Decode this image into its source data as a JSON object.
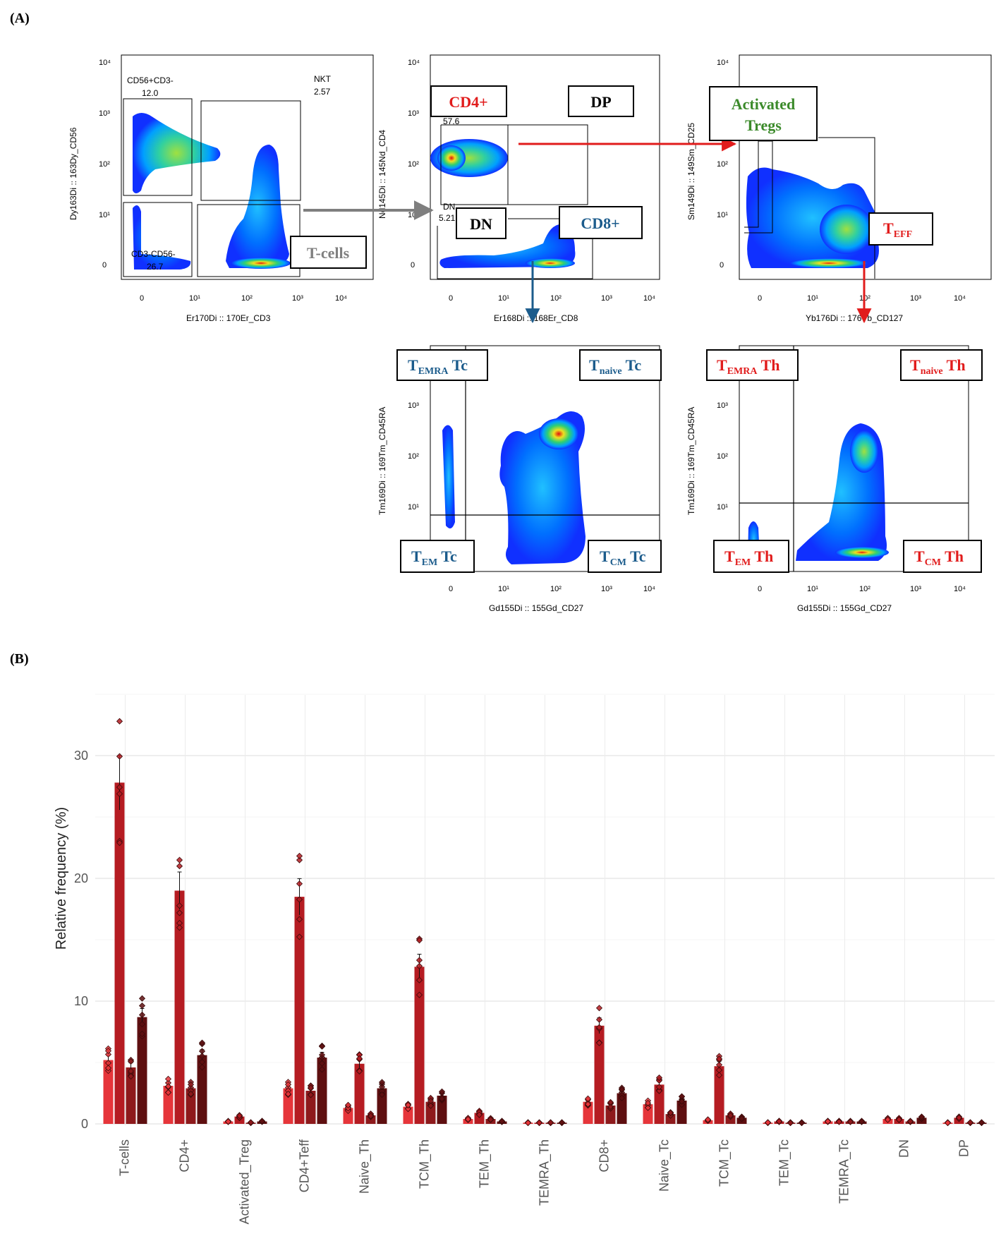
{
  "panel_a_label": "(A)",
  "panel_b_label": "(B)",
  "colors": {
    "red": "#e11c1c",
    "blue": "#1c5c8c",
    "green": "#3b8a2a",
    "gray": "#7f7f7f",
    "bar1": "#e6353a",
    "bar2": "#b51c22",
    "bar3": "#8e1a1c",
    "bar4": "#5e0f10"
  },
  "flow_panels": [
    {
      "id": "p1",
      "xlabel": "Er170Di :: 170Er_CD3",
      "ylabel": "Dy163Di :: 163Dy_CD56",
      "ticks": [
        "0",
        "10¹",
        "10²",
        "10³",
        "10⁴"
      ],
      "gates": [
        {
          "text": "CD56+CD3-"
        },
        {
          "text": "12.0"
        },
        {
          "text": "NKT"
        },
        {
          "text": "2.57"
        },
        {
          "text": "CD3-CD56-"
        },
        {
          "text": "26.7"
        }
      ]
    },
    {
      "id": "p2",
      "xlabel": "Er168Di :: 168Er_CD8",
      "ylabel": "Nd145Di :: 145Nd_CD4",
      "ticks": [
        "0",
        "10¹",
        "10²",
        "10³",
        "10⁴"
      ],
      "gates": [
        {
          "text": "57.6"
        },
        {
          "text": "DN"
        },
        {
          "text": "5.21"
        }
      ]
    },
    {
      "id": "p3",
      "xlabel": "Yb176Di :: 176Yb_CD127",
      "ylabel": "Sm149Di :: 149Sm_CD25",
      "ticks": [
        "0",
        "10¹",
        "10²",
        "10³",
        "10⁴"
      ],
      "gates": []
    },
    {
      "id": "p4",
      "xlabel": "Gd155Di :: 155Gd_CD27",
      "ylabel": "Tm169Di :: 169Tm_CD45RA",
      "ticks": [
        "0",
        "10¹",
        "10²",
        "10³",
        "10⁴"
      ],
      "gates": []
    },
    {
      "id": "p5",
      "xlabel": "Gd155Di :: 155Gd_CD27",
      "ylabel": "Tm169Di :: 169Tm_CD45RA",
      "ticks": [
        "0",
        "10¹",
        "10²",
        "10³",
        "10⁴"
      ],
      "gates": []
    }
  ],
  "boxes": {
    "tcells": "T-cells",
    "cd4": "CD4+",
    "dp": "DP",
    "dn": "DN",
    "cd8": "CD8+",
    "activated": "Activated",
    "tregs": "Tregs",
    "teff_main": "T",
    "teff_sub": "EFF",
    "temra_tc_main": "T",
    "temra_tc_sub": "EMRA",
    "temra_tc_suffix": " Tc",
    "tnaive_tc_main": "T",
    "tnaive_tc_sub": "naive",
    "tnaive_tc_suffix": " Tc",
    "tem_tc_main": "T",
    "tem_tc_sub": "EM",
    "tem_tc_suffix": " Tc",
    "tcm_tc_main": "T",
    "tcm_tc_sub": "CM",
    "tcm_tc_suffix": " Tc",
    "temra_th_main": "T",
    "temra_th_sub": "EMRA",
    "temra_th_suffix": " Th",
    "tnaive_th_main": "T",
    "tnaive_th_sub": "naive",
    "tnaive_th_suffix": " Th",
    "tem_th_main": "T",
    "tem_th_sub": "EM",
    "tem_th_suffix": " Th",
    "tcm_th_main": "T",
    "tcm_th_sub": "CM",
    "tcm_th_suffix": " Th"
  },
  "chart_data": {
    "type": "bar",
    "title": "",
    "xlabel": "",
    "ylabel": "Relative frequency (%)",
    "ylim": [
      0,
      35
    ],
    "yticks": [
      0,
      10,
      20,
      30
    ],
    "grid": true,
    "legend": "none",
    "categories": [
      "T-cells",
      "CD4+",
      "Activated_Treg",
      "CD4+Teff",
      "Naive_Th",
      "TCM_Th",
      "TEM_Th",
      "TEMRA_Th",
      "CD8+",
      "Naive_Tc",
      "TCM_Tc",
      "TEM_Tc",
      "TEMRA_Tc",
      "DN",
      "DP"
    ],
    "series": [
      {
        "values": [
          5.2,
          3.1,
          0.2,
          2.9,
          1.3,
          1.4,
          0.4,
          0.1,
          1.8,
          1.6,
          0.3,
          0.1,
          0.2,
          0.4,
          0.1
        ]
      },
      {
        "values": [
          27.8,
          19.0,
          0.6,
          18.5,
          4.9,
          12.8,
          0.9,
          0.1,
          8.0,
          3.2,
          4.7,
          0.2,
          0.2,
          0.4,
          0.5
        ]
      },
      {
        "values": [
          4.6,
          2.9,
          0.1,
          2.7,
          0.7,
          1.8,
          0.4,
          0.1,
          1.5,
          0.8,
          0.7,
          0.1,
          0.2,
          0.2,
          0.1
        ]
      },
      {
        "values": [
          8.7,
          5.6,
          0.2,
          5.4,
          2.9,
          2.3,
          0.2,
          0.1,
          2.5,
          1.9,
          0.5,
          0.1,
          0.2,
          0.5,
          0.1
        ]
      }
    ]
  }
}
